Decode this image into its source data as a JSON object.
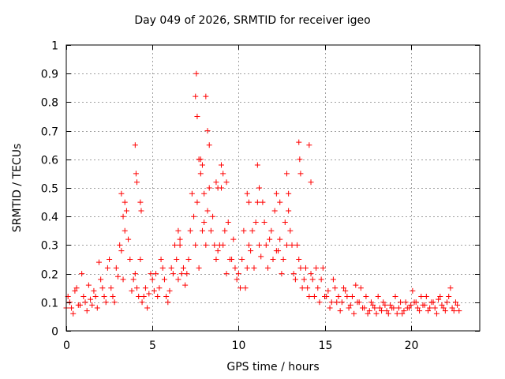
{
  "chart_data": {
    "type": "scatter",
    "title": "Day 049 of 2026, SRMTID for receiver igeo",
    "xlabel": "GPS time / hours",
    "ylabel": "SRMTID / TECUs",
    "xlim": [
      0,
      24
    ],
    "ylim": [
      0,
      1
    ],
    "xticks": [
      0,
      5,
      10,
      15,
      20
    ],
    "yticks": [
      0,
      0.1,
      0.2,
      0.3,
      0.4,
      0.5,
      0.6,
      0.7,
      0.8,
      0.9,
      1
    ],
    "grid": true,
    "marker": "+",
    "series": [
      {
        "name": "SRMTID",
        "color": "#ff0000",
        "x": [
          0.0,
          0.2,
          0.4,
          0.6,
          0.8,
          1.0,
          1.2,
          1.4,
          1.6,
          1.8,
          2.0,
          2.2,
          2.4,
          2.6,
          2.8,
          3.0,
          3.2,
          3.4,
          3.6,
          3.8,
          4.0,
          4.2,
          4.4,
          4.6,
          4.8,
          5.0,
          5.2,
          5.4,
          5.6,
          5.8,
          6.0,
          6.2,
          6.4,
          6.6,
          6.8,
          7.0,
          7.2,
          7.4,
          7.6,
          7.8,
          8.0,
          8.2,
          8.4,
          8.6,
          8.8,
          9.0,
          9.2,
          9.4,
          9.6,
          9.8,
          10.0,
          10.2,
          10.4,
          10.6,
          10.8,
          11.0,
          11.2,
          11.4,
          11.6,
          11.8,
          12.0,
          12.2,
          12.4,
          12.6,
          12.8,
          13.0,
          13.2,
          13.4,
          13.6,
          13.8,
          14.0,
          14.2,
          14.4,
          14.6,
          14.8,
          15.0,
          15.2,
          15.4,
          15.6,
          15.8,
          16.0,
          16.2,
          16.4,
          16.6,
          16.8,
          17.0,
          17.2,
          17.4,
          17.6,
          17.8,
          18.0,
          18.2,
          18.4,
          18.6,
          18.8,
          19.0,
          19.2,
          19.4,
          19.6,
          19.8,
          20.0,
          20.2,
          20.4,
          20.6,
          20.8,
          21.0,
          21.2,
          21.4,
          21.6,
          21.8,
          22.0,
          22.2,
          22.4,
          22.6,
          22.8,
          0.1,
          0.3,
          0.5,
          0.7,
          0.9,
          1.1,
          1.3,
          1.5,
          1.7,
          1.9,
          2.1,
          2.3,
          2.5,
          2.7,
          2.9,
          3.1,
          3.3,
          3.5,
          3.7,
          3.9,
          4.1,
          4.3,
          4.5,
          4.7,
          4.9,
          5.1,
          5.3,
          5.5,
          5.7,
          5.9,
          6.1,
          6.3,
          6.5,
          6.7,
          6.9,
          7.1,
          7.3,
          7.5,
          7.7,
          7.9,
          8.1,
          8.3,
          8.5,
          8.7,
          8.9,
          9.1,
          9.3,
          9.5,
          9.7,
          9.9,
          10.1,
          10.3,
          10.5,
          10.7,
          10.9,
          11.1,
          11.3,
          11.5,
          11.7,
          11.9,
          12.1,
          12.3,
          12.5,
          12.7,
          12.9,
          13.1,
          13.3,
          13.5,
          13.7,
          13.9,
          14.1,
          14.3,
          14.5,
          14.7,
          14.9,
          15.1,
          15.3,
          15.5,
          15.7,
          15.9,
          16.1,
          16.3,
          16.5,
          16.7,
          16.9,
          17.1,
          17.3,
          17.5,
          17.7,
          17.9,
          18.1,
          18.3,
          18.5,
          18.7,
          18.9,
          19.1,
          19.3,
          19.5,
          19.7,
          19.9,
          20.1,
          20.3,
          20.5,
          20.7,
          20.9,
          21.1,
          21.3,
          21.5,
          21.7,
          21.9,
          22.1,
          22.3,
          22.5,
          22.7,
          4.0,
          4.05,
          4.1,
          3.2,
          3.3,
          7.5,
          7.55,
          7.6,
          7.7,
          7.8,
          8.1,
          8.2,
          8.3,
          7.9,
          8.0,
          13.5,
          13.55,
          13.6,
          14.1,
          14.2,
          11.1,
          11.2,
          12.8,
          12.9,
          9.0,
          9.1,
          9.3,
          8.7,
          8.8,
          10.6,
          10.5,
          12.2,
          12.4,
          4.3,
          4.35,
          3.4,
          6.5,
          6.6
        ],
        "y": [
          0.08,
          0.1,
          0.06,
          0.15,
          0.09,
          0.12,
          0.07,
          0.11,
          0.14,
          0.08,
          0.18,
          0.12,
          0.22,
          0.15,
          0.1,
          0.19,
          0.28,
          0.35,
          0.32,
          0.14,
          0.2,
          0.12,
          0.1,
          0.15,
          0.13,
          0.18,
          0.2,
          0.15,
          0.22,
          0.12,
          0.14,
          0.2,
          0.25,
          0.3,
          0.22,
          0.2,
          0.35,
          0.4,
          0.45,
          0.6,
          0.38,
          0.42,
          0.35,
          0.3,
          0.28,
          0.5,
          0.35,
          0.38,
          0.25,
          0.22,
          0.2,
          0.25,
          0.15,
          0.3,
          0.35,
          0.38,
          0.3,
          0.45,
          0.3,
          0.32,
          0.25,
          0.28,
          0.32,
          0.25,
          0.3,
          0.35,
          0.2,
          0.3,
          0.22,
          0.18,
          0.15,
          0.2,
          0.12,
          0.15,
          0.18,
          0.12,
          0.14,
          0.1,
          0.15,
          0.12,
          0.1,
          0.14,
          0.08,
          0.12,
          0.16,
          0.1,
          0.08,
          0.12,
          0.07,
          0.09,
          0.06,
          0.08,
          0.1,
          0.07,
          0.09,
          0.08,
          0.06,
          0.1,
          0.07,
          0.08,
          0.09,
          0.1,
          0.08,
          0.12,
          0.09,
          0.07,
          0.1,
          0.08,
          0.11,
          0.09,
          0.07,
          0.12,
          0.08,
          0.1,
          0.07,
          0.12,
          0.08,
          0.14,
          0.09,
          0.2,
          0.1,
          0.16,
          0.09,
          0.12,
          0.24,
          0.15,
          0.1,
          0.25,
          0.12,
          0.22,
          0.3,
          0.18,
          0.42,
          0.25,
          0.18,
          0.15,
          0.25,
          0.12,
          0.08,
          0.2,
          0.14,
          0.12,
          0.25,
          0.18,
          0.1,
          0.22,
          0.3,
          0.18,
          0.2,
          0.16,
          0.25,
          0.48,
          0.3,
          0.22,
          0.35,
          0.3,
          0.5,
          0.4,
          0.25,
          0.3,
          0.3,
          0.2,
          0.25,
          0.32,
          0.18,
          0.15,
          0.35,
          0.22,
          0.28,
          0.22,
          0.45,
          0.26,
          0.38,
          0.22,
          0.35,
          0.42,
          0.28,
          0.2,
          0.38,
          0.42,
          0.3,
          0.18,
          0.25,
          0.15,
          0.22,
          0.12,
          0.18,
          0.22,
          0.1,
          0.22,
          0.12,
          0.08,
          0.18,
          0.1,
          0.07,
          0.15,
          0.12,
          0.09,
          0.06,
          0.1,
          0.15,
          0.08,
          0.06,
          0.1,
          0.08,
          0.12,
          0.07,
          0.09,
          0.06,
          0.08,
          0.12,
          0.08,
          0.06,
          0.1,
          0.08,
          0.14,
          0.1,
          0.07,
          0.09,
          0.12,
          0.08,
          0.1,
          0.06,
          0.12,
          0.08,
          0.1,
          0.15,
          0.07,
          0.09,
          0.65,
          0.55,
          0.52,
          0.48,
          0.4,
          0.82,
          0.9,
          0.75,
          0.6,
          0.55,
          0.82,
          0.7,
          0.65,
          0.58,
          0.48,
          0.66,
          0.6,
          0.55,
          0.65,
          0.52,
          0.58,
          0.5,
          0.55,
          0.48,
          0.58,
          0.55,
          0.52,
          0.52,
          0.5,
          0.45,
          0.48,
          0.48,
          0.45,
          0.45,
          0.42,
          0.45,
          0.35,
          0.32
        ]
      }
    ]
  }
}
